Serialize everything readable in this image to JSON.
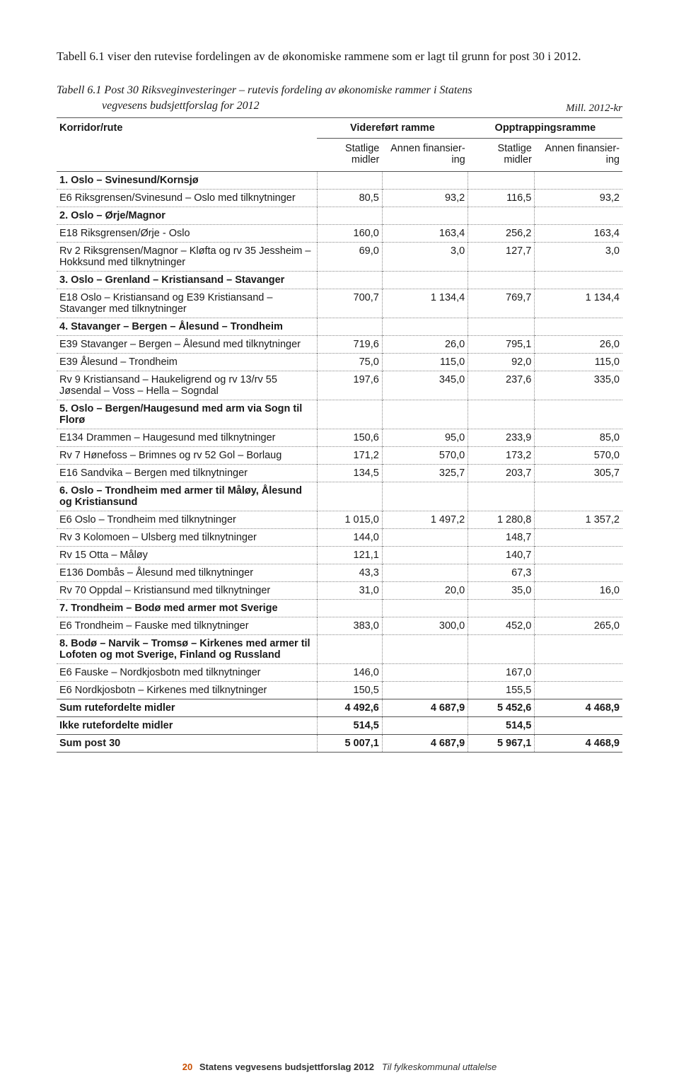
{
  "intro": "Tabell 6.1 viser den rutevise fordelingen av de økonomiske rammene som er lagt til grunn for post 30 i 2012.",
  "caption_line1": "Tabell 6.1  Post 30 Riksveginvesteringer – rutevis fordeling av økonomiske rammer i Statens",
  "caption_line2": "vegvesens budsjettforslag for 2012",
  "unit": "Mill. 2012-kr",
  "header": {
    "korridor": "Korridor/rute",
    "videre": "Videreført ramme",
    "opptrapp": "Opptrappingsramme",
    "stat": "Statlige midler",
    "annen": "Annen finansier-ing"
  },
  "rows": [
    {
      "type": "section",
      "label": "1. Oslo – Svinesund/Kornsjø"
    },
    {
      "type": "data",
      "label": "E6  Riksgrensen/Svinesund – Oslo med tilknytninger",
      "v": [
        "80,5",
        "93,2",
        "116,5",
        "93,2"
      ]
    },
    {
      "type": "section",
      "label": "2. Oslo – Ørje/Magnor"
    },
    {
      "type": "data",
      "label": "E18  Riksgrensen/Ørje - Oslo",
      "v": [
        "160,0",
        "163,4",
        "256,2",
        "163,4"
      ]
    },
    {
      "type": "data",
      "label": "Rv 2 Riksgrensen/Magnor – Kløfta og rv 35 Jessheim – Hokksund med tilknytninger",
      "v": [
        "69,0",
        "3,0",
        "127,7",
        "3,0"
      ]
    },
    {
      "type": "section",
      "label": "3. Oslo – Grenland – Kristiansand – Stavanger"
    },
    {
      "type": "data",
      "label": "E18  Oslo – Kristiansand og E39 Kristiansand – Stavanger med tilknytninger",
      "v": [
        "700,7",
        "1 134,4",
        "769,7",
        "1 134,4"
      ]
    },
    {
      "type": "section",
      "label": "4. Stavanger – Bergen – Ålesund – Trondheim"
    },
    {
      "type": "data",
      "label": "E39  Stavanger – Bergen – Ålesund med tilknytninger",
      "v": [
        "719,6",
        "26,0",
        "795,1",
        "26,0"
      ]
    },
    {
      "type": "data",
      "label": "E39  Ålesund – Trondheim",
      "v": [
        "75,0",
        "115,0",
        "92,0",
        "115,0"
      ]
    },
    {
      "type": "data",
      "label": "Rv 9 Kristiansand – Haukeligrend og rv 13/rv 55 Jøsendal – Voss – Hella – Sogndal",
      "v": [
        "197,6",
        "345,0",
        "237,6",
        "335,0"
      ]
    },
    {
      "type": "section",
      "label": "5. Oslo – Bergen/Haugesund med arm via Sogn til Florø"
    },
    {
      "type": "data",
      "label": "E134 Drammen – Haugesund med tilknytninger",
      "v": [
        "150,6",
        "95,0",
        "233,9",
        "85,0"
      ]
    },
    {
      "type": "data",
      "label": "Rv 7 Hønefoss – Brimnes og rv 52 Gol – Borlaug",
      "v": [
        "171,2",
        "570,0",
        "173,2",
        "570,0"
      ]
    },
    {
      "type": "data",
      "label": "E16 Sandvika – Bergen med tilknytninger",
      "v": [
        "134,5",
        "325,7",
        "203,7",
        "305,7"
      ]
    },
    {
      "type": "section",
      "label": "6. Oslo – Trondheim med armer til Måløy, Ålesund og Kristiansund"
    },
    {
      "type": "data",
      "label": "E6 Oslo – Trondheim med tilknytninger",
      "v": [
        "1 015,0",
        "1 497,2",
        "1 280,8",
        "1 357,2"
      ]
    },
    {
      "type": "data",
      "label": "Rv 3 Kolomoen – Ulsberg med tilknytninger",
      "v": [
        "144,0",
        "",
        "148,7",
        ""
      ]
    },
    {
      "type": "data",
      "label": "Rv 15 Otta – Måløy",
      "v": [
        "121,1",
        "",
        "140,7",
        ""
      ]
    },
    {
      "type": "data",
      "label": "E136 Dombås – Ålesund med tilknytninger",
      "v": [
        "43,3",
        "",
        "67,3",
        ""
      ]
    },
    {
      "type": "data",
      "label": "Rv 70 Oppdal – Kristiansund med tilknytninger",
      "v": [
        "31,0",
        "20,0",
        "35,0",
        "16,0"
      ]
    },
    {
      "type": "section",
      "label": "7. Trondheim – Bodø med armer mot Sverige"
    },
    {
      "type": "data",
      "label": "E6 Trondheim – Fauske med tilknytninger",
      "v": [
        "383,0",
        "300,0",
        "452,0",
        "265,0"
      ]
    },
    {
      "type": "section",
      "label": "8. Bodø – Narvik – Tromsø – Kirkenes med armer til Lofoten og mot Sverige, Finland og Russland"
    },
    {
      "type": "data",
      "label": "E6 Fauske – Nordkjosbotn med tilknytninger",
      "v": [
        "146,0",
        "",
        "167,0",
        ""
      ]
    },
    {
      "type": "data",
      "label": "E6 Nordkjosbotn – Kirkenes med tilknytninger",
      "v": [
        "150,5",
        "",
        "155,5",
        ""
      ]
    },
    {
      "type": "total",
      "label": "Sum rutefordelte midler",
      "v": [
        "4 492,6",
        "4 687,9",
        "5 452,6",
        "4 468,9"
      ],
      "first": true
    },
    {
      "type": "total",
      "label": "Ikke rutefordelte midler",
      "v": [
        "514,5",
        "",
        "514,5",
        ""
      ]
    },
    {
      "type": "total",
      "label": "Sum post 30",
      "v": [
        "5 007,1",
        "4 687,9",
        "5 967,1",
        "4 468,9"
      ]
    }
  ],
  "footer": {
    "pageno": "20",
    "title": "Statens vegvesens budsjettforslag 2012",
    "sub": "Til fylkeskommunal uttalelse"
  }
}
